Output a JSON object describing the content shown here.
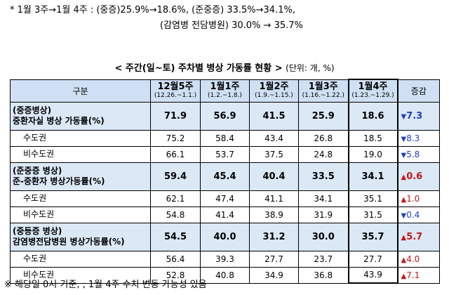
{
  "notes": {
    "line1": "* 1월 3주→1월 4주 : (중증)25.9%→18.6%, (준중증) 33.5%→34.1%,",
    "line2": "(감염병 전담병원) 30.0% → 35.7%"
  },
  "table": {
    "title": "< 주간(일~토) 주차별 병상 가동률 현황 >",
    "unit": "(단위: 개, %)",
    "headers": {
      "category": "구분",
      "change": "증감",
      "weeks": [
        {
          "label": "12월5주",
          "range": "(12.26.~1.1.)"
        },
        {
          "label": "1월1주",
          "range": "(1.2.~1.8.)"
        },
        {
          "label": "1월2주",
          "range": "(1.9.~1.15.)"
        },
        {
          "label": "1월3주",
          "range": "(1.16.~1.22.)"
        },
        {
          "label": "1월4주",
          "range": "(1.23.~1.29.)"
        }
      ]
    },
    "rows": [
      {
        "category": "(중증병상)\n중환자실 병상 가동률(%)",
        "values": [
          "71.9",
          "56.9",
          "41.5",
          "25.9",
          "18.6"
        ],
        "change": "7.3",
        "direction": "down"
      },
      {
        "category": "수도권",
        "values": [
          "75.2",
          "58.4",
          "43.4",
          "26.8",
          "18.5"
        ],
        "change": "8.3",
        "direction": "down"
      },
      {
        "category": "비수도권",
        "values": [
          "66.1",
          "53.7",
          "37.5",
          "24.8",
          "19.0"
        ],
        "change": "5.8",
        "direction": "down"
      },
      {
        "category": "(준중증 병상)\n준-중환자 병상가동률(%)",
        "values": [
          "59.4",
          "45.4",
          "40.4",
          "33.5",
          "34.1"
        ],
        "change": "0.6",
        "direction": "up"
      },
      {
        "category": "수도권",
        "values": [
          "62.1",
          "47.4",
          "41.1",
          "34.1",
          "35.1"
        ],
        "change": "1.0",
        "direction": "up"
      },
      {
        "category": "비수도권",
        "values": [
          "54.8",
          "41.4",
          "38.9",
          "31.9",
          "31.5"
        ],
        "change": "0.4",
        "direction": "down"
      },
      {
        "category": "(중등증 병상)\n감염병전담병원 병상가동률(%)",
        "values": [
          "54.5",
          "40.0",
          "31.2",
          "30.0",
          "35.7"
        ],
        "change": "5.7",
        "direction": "up"
      },
      {
        "category": "수도권",
        "values": [
          "56.4",
          "39.3",
          "27.7",
          "23.7",
          "27.7"
        ],
        "change": "4.0",
        "direction": "up"
      },
      {
        "category": "비수도권",
        "values": [
          "52.8",
          "40.8",
          "34.9",
          "36.8",
          "43.9"
        ],
        "change": "7.1",
        "direction": "up"
      }
    ]
  },
  "footnote": "※ 해당일 0시 기준, , 1월 4주 수치 변동 가능성 있음",
  "colors": {
    "header_bg": "#cfe0f4",
    "main_row_bg": "#dbe8f6",
    "down": "#1f3fc4",
    "up": "#c01818"
  },
  "icons": {
    "down": "triangle-down-icon",
    "up": "triangle-up-icon"
  }
}
